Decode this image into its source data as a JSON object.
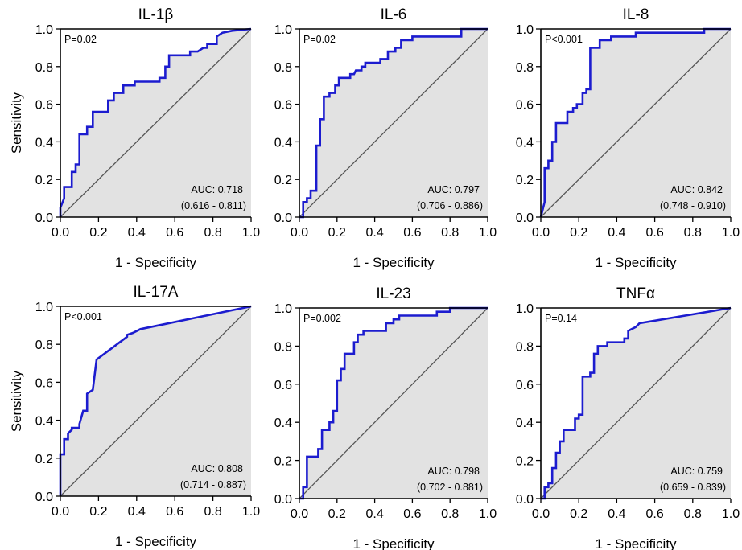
{
  "style": {
    "curve_color": "#1c1ccf",
    "fill_color": "#e2e2e2",
    "diagonal_color": "#555555",
    "axis_color": "#000000"
  },
  "chart_data": [
    {
      "type": "line",
      "title": "IL-1β",
      "xlabel": "1 - Specificity",
      "ylabel": "Sensitivity",
      "xlim": [
        0,
        1
      ],
      "ylim": [
        0,
        1
      ],
      "xticks": [
        "0.0",
        "0.2",
        "0.4",
        "0.6",
        "0.8",
        "1.0"
      ],
      "yticks": [
        "0.0",
        "0.2",
        "0.4",
        "0.6",
        "0.8",
        "1.0"
      ],
      "p_label": "P=0.02",
      "auc_label": "AUC: 0.718",
      "ci_label": "(0.616 - 0.811)",
      "grid": false,
      "x": [
        0,
        0,
        0.02,
        0.02,
        0.06,
        0.06,
        0.08,
        0.08,
        0.1,
        0.1,
        0.14,
        0.14,
        0.17,
        0.17,
        0.25,
        0.25,
        0.28,
        0.28,
        0.33,
        0.33,
        0.39,
        0.39,
        0.52,
        0.52,
        0.55,
        0.55,
        0.57,
        0.57,
        0.68,
        0.68,
        0.72,
        0.75,
        0.77,
        0.77,
        0.82,
        0.82,
        0.85,
        0.9,
        1.0
      ],
      "y": [
        0,
        0.05,
        0.1,
        0.16,
        0.16,
        0.24,
        0.24,
        0.28,
        0.28,
        0.44,
        0.44,
        0.48,
        0.48,
        0.56,
        0.56,
        0.62,
        0.62,
        0.66,
        0.66,
        0.7,
        0.7,
        0.72,
        0.72,
        0.74,
        0.74,
        0.8,
        0.8,
        0.86,
        0.86,
        0.88,
        0.88,
        0.9,
        0.9,
        0.92,
        0.92,
        0.96,
        0.98,
        0.99,
        1.0
      ]
    },
    {
      "type": "line",
      "title": "IL-6",
      "xlabel": "1 - Specificity",
      "ylabel": "",
      "xlim": [
        0,
        1
      ],
      "ylim": [
        0,
        1
      ],
      "xticks": [
        "0.0",
        "0.2",
        "0.4",
        "0.6",
        "0.8",
        "1.0"
      ],
      "yticks": [
        "0.0",
        "0.2",
        "0.4",
        "0.6",
        "0.8",
        "1.0"
      ],
      "p_label": "P=0.02",
      "auc_label": "AUC: 0.797",
      "ci_label": "(0.706 - 0.886)",
      "grid": false,
      "x": [
        0,
        0.02,
        0.02,
        0.04,
        0.04,
        0.06,
        0.06,
        0.09,
        0.09,
        0.11,
        0.11,
        0.13,
        0.13,
        0.16,
        0.16,
        0.19,
        0.19,
        0.21,
        0.21,
        0.27,
        0.27,
        0.29,
        0.3,
        0.33,
        0.33,
        0.35,
        0.35,
        0.43,
        0.43,
        0.47,
        0.47,
        0.51,
        0.51,
        0.54,
        0.54,
        0.6,
        0.6,
        0.86,
        0.86,
        1.0
      ],
      "y": [
        0,
        0,
        0.08,
        0.08,
        0.1,
        0.1,
        0.14,
        0.14,
        0.38,
        0.38,
        0.52,
        0.52,
        0.64,
        0.64,
        0.66,
        0.66,
        0.7,
        0.7,
        0.74,
        0.74,
        0.76,
        0.76,
        0.78,
        0.78,
        0.8,
        0.8,
        0.82,
        0.82,
        0.84,
        0.84,
        0.88,
        0.88,
        0.9,
        0.9,
        0.94,
        0.94,
        0.96,
        0.96,
        1.0,
        1.0
      ]
    },
    {
      "type": "line",
      "title": "IL-8",
      "xlabel": "1 - Specificity",
      "ylabel": "",
      "xlim": [
        0,
        1
      ],
      "ylim": [
        0,
        1
      ],
      "xticks": [
        "0.0",
        "0.2",
        "0.4",
        "0.6",
        "0.8",
        "1.0"
      ],
      "yticks": [
        "0.0",
        "0.2",
        "0.4",
        "0.6",
        "0.8",
        "1.0"
      ],
      "p_label": "P<0.001",
      "auc_label": "AUC: 0.842",
      "ci_label": "(0.748 - 0.910)",
      "grid": false,
      "x": [
        0,
        0.02,
        0.02,
        0.04,
        0.04,
        0.06,
        0.06,
        0.08,
        0.08,
        0.1,
        0.1,
        0.14,
        0.14,
        0.17,
        0.17,
        0.19,
        0.19,
        0.22,
        0.22,
        0.24,
        0.24,
        0.26,
        0.26,
        0.29,
        0.29,
        0.31,
        0.31,
        0.37,
        0.37,
        0.42,
        0.42,
        0.5,
        0.5,
        0.86,
        0.86,
        1.0
      ],
      "y": [
        0,
        0.08,
        0.26,
        0.26,
        0.3,
        0.3,
        0.4,
        0.4,
        0.5,
        0.5,
        0.5,
        0.5,
        0.56,
        0.56,
        0.58,
        0.58,
        0.6,
        0.6,
        0.66,
        0.66,
        0.68,
        0.68,
        0.9,
        0.9,
        0.9,
        0.9,
        0.94,
        0.94,
        0.96,
        0.96,
        0.96,
        0.96,
        0.98,
        0.98,
        1.0,
        1.0
      ]
    },
    {
      "type": "line",
      "title": "IL-17A",
      "xlabel": "1 - Specificity",
      "ylabel": "Sensitivity",
      "xlim": [
        0,
        1
      ],
      "ylim": [
        0,
        1
      ],
      "xticks": [
        "0.0",
        "0.2",
        "0.4",
        "0.6",
        "0.8",
        "1.0"
      ],
      "yticks": [
        "0.0",
        "0.2",
        "0.4",
        "0.6",
        "0.8",
        "1.0"
      ],
      "p_label": "P<0.001",
      "auc_label": "AUC: 0.808",
      "ci_label": "(0.714 - 0.887)",
      "grid": false,
      "x": [
        0,
        0,
        0.02,
        0.02,
        0.04,
        0.04,
        0.06,
        0.06,
        0.1,
        0.1,
        0.12,
        0.14,
        0.14,
        0.17,
        0.17,
        0.19,
        0.19,
        0.35,
        0.35,
        0.38,
        0.42,
        1.0
      ],
      "y": [
        0,
        0.22,
        0.22,
        0.3,
        0.3,
        0.33,
        0.35,
        0.36,
        0.36,
        0.38,
        0.45,
        0.45,
        0.54,
        0.56,
        0.56,
        0.72,
        0.72,
        0.84,
        0.85,
        0.86,
        0.88,
        1.0
      ]
    },
    {
      "type": "line",
      "title": "IL-23",
      "xlabel": "1 - Specificity",
      "ylabel": "",
      "xlim": [
        0,
        1
      ],
      "ylim": [
        0,
        1
      ],
      "xticks": [
        "0.0",
        "0.2",
        "0.4",
        "0.6",
        "0.8",
        "1.0"
      ],
      "yticks": [
        "0.0",
        "0.2",
        "0.4",
        "0.6",
        "0.8",
        "1.0"
      ],
      "p_label": "P=0.002",
      "auc_label": "AUC: 0.798",
      "ci_label": "(0.702 - 0.881)",
      "grid": false,
      "x": [
        0,
        0.02,
        0.02,
        0.04,
        0.04,
        0.1,
        0.1,
        0.12,
        0.12,
        0.16,
        0.16,
        0.18,
        0.18,
        0.2,
        0.2,
        0.22,
        0.22,
        0.24,
        0.24,
        0.29,
        0.29,
        0.31,
        0.31,
        0.34,
        0.34,
        0.38,
        0.38,
        0.46,
        0.46,
        0.5,
        0.5,
        0.53,
        0.53,
        0.73,
        0.73,
        0.8,
        0.8,
        1.0
      ],
      "y": [
        0,
        0,
        0.06,
        0.06,
        0.22,
        0.22,
        0.26,
        0.26,
        0.36,
        0.36,
        0.4,
        0.4,
        0.46,
        0.46,
        0.62,
        0.62,
        0.68,
        0.68,
        0.76,
        0.76,
        0.82,
        0.82,
        0.86,
        0.86,
        0.88,
        0.88,
        0.88,
        0.88,
        0.92,
        0.92,
        0.94,
        0.94,
        0.96,
        0.96,
        0.98,
        0.98,
        1.0,
        1.0
      ]
    },
    {
      "type": "line",
      "title": "TNFα",
      "xlabel": "1 - Specificity",
      "ylabel": "",
      "xlim": [
        0,
        1
      ],
      "ylim": [
        0,
        1
      ],
      "xticks": [
        "0.0",
        "0.2",
        "0.4",
        "0.6",
        "0.8",
        "1.0"
      ],
      "yticks": [
        "0.0",
        "0.2",
        "0.4",
        "0.6",
        "0.8",
        "1.0"
      ],
      "p_label": "P=0.14",
      "auc_label": "AUC: 0.759",
      "ci_label": "(0.659 - 0.839)",
      "grid": false,
      "x": [
        0,
        0.02,
        0.02,
        0.04,
        0.04,
        0.06,
        0.06,
        0.08,
        0.08,
        0.1,
        0.1,
        0.12,
        0.12,
        0.18,
        0.18,
        0.2,
        0.2,
        0.22,
        0.22,
        0.26,
        0.26,
        0.28,
        0.28,
        0.3,
        0.3,
        0.32,
        0.32,
        0.35,
        0.35,
        0.44,
        0.44,
        0.46,
        0.46,
        0.5,
        0.52,
        1.0
      ],
      "y": [
        0,
        0,
        0.06,
        0.06,
        0.08,
        0.08,
        0.16,
        0.16,
        0.24,
        0.24,
        0.3,
        0.3,
        0.36,
        0.36,
        0.42,
        0.42,
        0.44,
        0.44,
        0.64,
        0.64,
        0.66,
        0.66,
        0.76,
        0.76,
        0.8,
        0.8,
        0.8,
        0.8,
        0.82,
        0.82,
        0.84,
        0.84,
        0.88,
        0.9,
        0.92,
        1.0
      ]
    }
  ]
}
